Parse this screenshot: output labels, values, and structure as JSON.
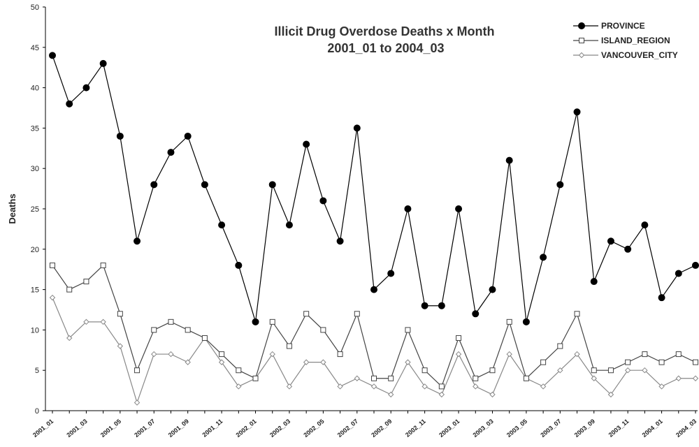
{
  "chart_data": {
    "type": "line",
    "title": "Illicit Drug Overdose Deaths x Month",
    "subtitle": "2001_01 to 2004_03",
    "xlabel": "",
    "ylabel": "Deaths",
    "ylim": [
      0,
      50
    ],
    "yticks": [
      0,
      5,
      10,
      15,
      20,
      25,
      30,
      35,
      40,
      45,
      50
    ],
    "x": [
      "2001_01",
      "2001_02",
      "2001_03",
      "2001_04",
      "2001_05",
      "2001_06",
      "2001_07",
      "2001_08",
      "2001_09",
      "2001_10",
      "2001_11",
      "2001_12",
      "2002_01",
      "2002_02",
      "2002_03",
      "2002_04",
      "2002_05",
      "2002_06",
      "2002_07",
      "2002_08",
      "2002_09",
      "2002_10",
      "2002_11",
      "2002_12",
      "2003_01",
      "2003_02",
      "2003_03",
      "2003_04",
      "2003_05",
      "2003_06",
      "2003_07",
      "2003_08",
      "2003_09",
      "2003_10",
      "2003_11",
      "2003_12",
      "2004_01",
      "2004_02",
      "2004_03"
    ],
    "x_tick_labels": [
      "2001_01",
      "2001_03",
      "2001_05",
      "2001_07",
      "2001_09",
      "2001_11",
      "2002_01",
      "2002_03",
      "2002_05",
      "2002_07",
      "2002_09",
      "2002_11",
      "2003_01",
      "2003_03",
      "2003_05",
      "2003_07",
      "2003_09",
      "2003_11",
      "2004_01",
      "2004_03"
    ],
    "grid": false,
    "legend_position": "top-right",
    "series": [
      {
        "name": "PROVINCE",
        "marker": "filled-circle",
        "color": "#000000",
        "values": [
          44,
          38,
          40,
          43,
          34,
          21,
          28,
          32,
          34,
          28,
          23,
          18,
          11,
          28,
          23,
          33,
          26,
          21,
          35,
          15,
          17,
          25,
          13,
          13,
          25,
          12,
          15,
          31,
          11,
          19,
          28,
          37,
          16,
          21,
          20,
          23,
          14,
          17,
          18
        ]
      },
      {
        "name": "ISLAND_REGION",
        "marker": "square",
        "color": "#444444",
        "values": [
          18,
          15,
          16,
          18,
          12,
          5,
          10,
          11,
          10,
          9,
          7,
          5,
          4,
          11,
          8,
          12,
          10,
          7,
          12,
          4,
          4,
          10,
          5,
          3,
          9,
          4,
          5,
          11,
          4,
          6,
          8,
          12,
          5,
          5,
          6,
          7,
          6,
          7,
          6
        ]
      },
      {
        "name": "VANCOUVER_CITY",
        "marker": "diamond",
        "color": "#888888",
        "values": [
          14,
          9,
          11,
          11,
          8,
          1,
          7,
          7,
          6,
          9,
          6,
          3,
          4,
          7,
          3,
          6,
          6,
          3,
          4,
          3,
          2,
          6,
          3,
          2,
          7,
          3,
          2,
          7,
          4,
          3,
          5,
          7,
          4,
          2,
          5,
          5,
          3,
          4,
          4
        ]
      }
    ]
  }
}
